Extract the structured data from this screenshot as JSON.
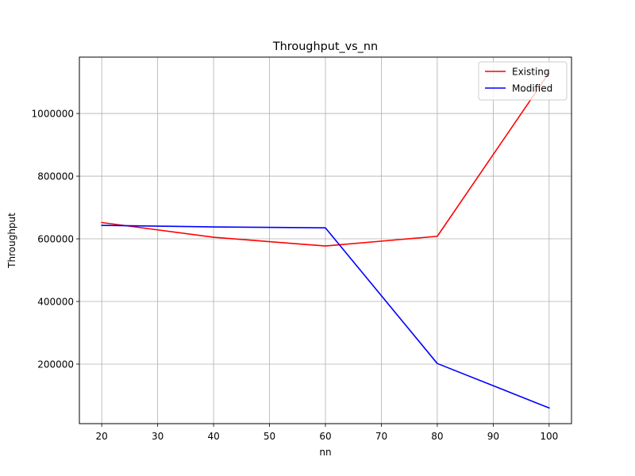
{
  "chart_data": {
    "type": "line",
    "title": "Throughput_vs_nn",
    "xlabel": "nn",
    "ylabel": "Throughput",
    "x": [
      20,
      40,
      60,
      80,
      100
    ],
    "xlim": [
      16,
      104
    ],
    "ylim": [
      10000,
      1180000
    ],
    "xticks": [
      20,
      30,
      40,
      50,
      60,
      70,
      80,
      90,
      100
    ],
    "yticks": [
      200000,
      400000,
      600000,
      800000,
      1000000
    ],
    "grid": true,
    "legend_position": "top-right",
    "series": [
      {
        "name": "Existing",
        "color": "#ff0000",
        "values": [
          652000,
          605000,
          577000,
          608000,
          1130000
        ]
      },
      {
        "name": "Modified",
        "color": "#0000ff",
        "values": [
          643000,
          638000,
          635000,
          202000,
          60000
        ]
      }
    ]
  }
}
